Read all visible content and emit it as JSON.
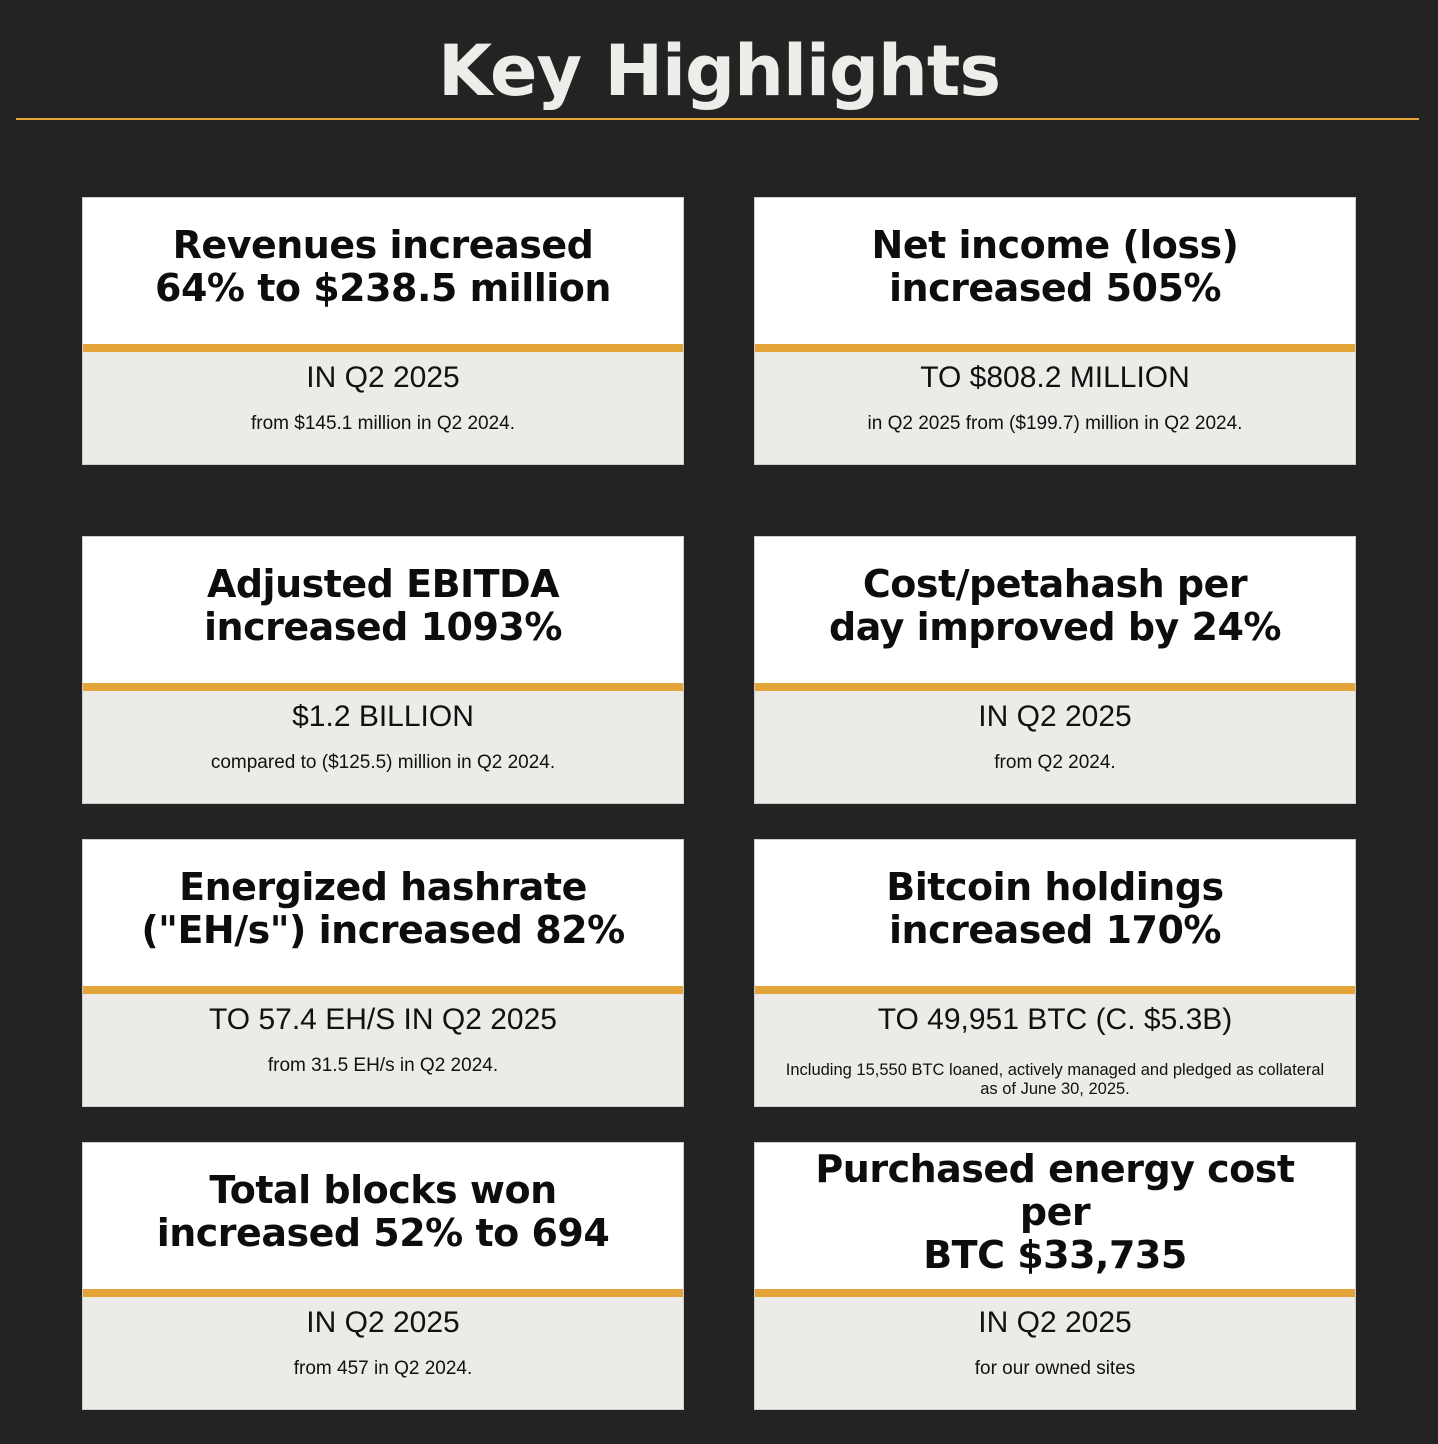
{
  "page": {
    "title": "Key Highlights"
  },
  "colors": {
    "background": "#242223",
    "accent": "#e3a43a",
    "card_top": "#ffffff",
    "card_bottom": "#ecebe8"
  },
  "cards": [
    {
      "headline_line1": "Revenues increased",
      "headline_line2": "64% to $238.5 million",
      "subhead": "IN Q2 2025",
      "note": "from $145.1 million in Q2 2024."
    },
    {
      "headline_line1": "Net income (loss)",
      "headline_line2": "increased 505%",
      "subhead": "TO $808.2 MILLION",
      "note": "in Q2 2025 from ($199.7) million in Q2 2024."
    },
    {
      "headline_line1": "Adjusted EBITDA",
      "headline_line2": "increased 1093%",
      "subhead": "$1.2 BILLION",
      "note": "compared to ($125.5) million in Q2 2024."
    },
    {
      "headline_line1": "Cost/petahash per",
      "headline_line2": "day improved by 24%",
      "subhead": "IN Q2 2025",
      "note": "from Q2 2024."
    },
    {
      "headline_line1": "Energized hashrate",
      "headline_line2": "(\"EH/s\") increased 82%",
      "subhead": "TO 57.4 EH/S IN Q2 2025",
      "note": "from 31.5 EH/s in Q2 2024."
    },
    {
      "headline_line1": "Bitcoin holdings",
      "headline_line2": "increased 170%",
      "subhead": "TO 49,951 BTC (C. $5.3B)",
      "note": "Including 15,550 BTC loaned, actively managed and pledged as collateral as of June 30, 2025."
    },
    {
      "headline_line1": "Total blocks won",
      "headline_line2": "increased 52% to 694",
      "subhead": "IN Q2 2025",
      "note": "from 457 in Q2 2024."
    },
    {
      "headline_line1": "Purchased energy cost per",
      "headline_line2": "BTC $33,735",
      "subhead": "IN Q2 2025",
      "note": "for our owned sites"
    }
  ]
}
